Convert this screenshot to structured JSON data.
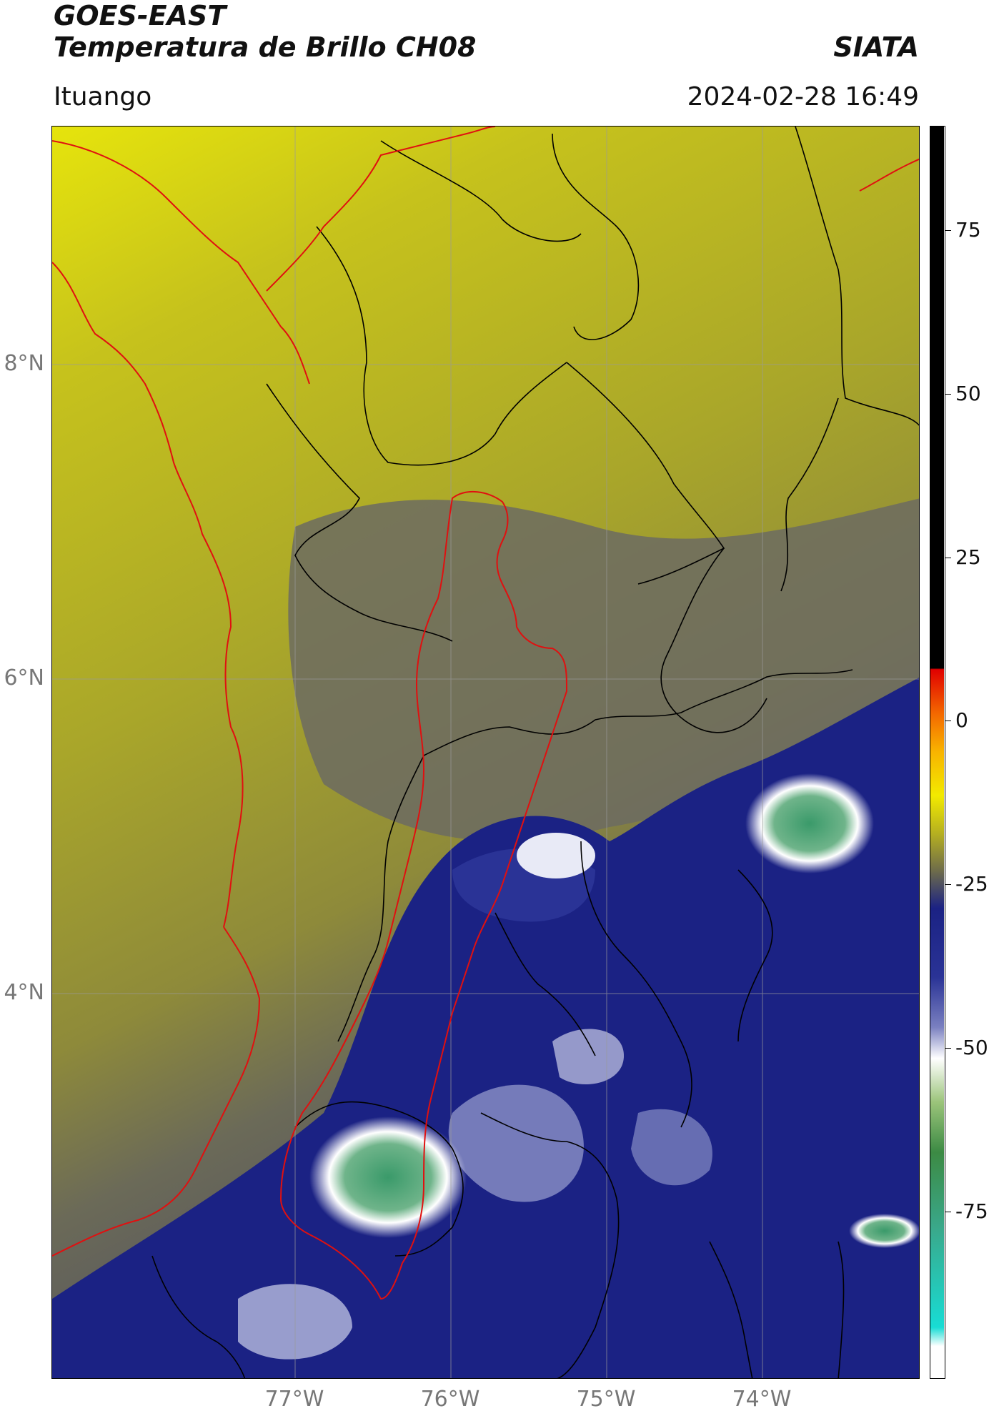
{
  "header": {
    "title_line1": "GOES-EAST",
    "title_line2": "Temperatura de Brillo CH08",
    "brand": "SIATA",
    "location": "Ituango",
    "timestamp": "2024-02-28 16:49"
  },
  "map": {
    "lat_ticks": [
      "8°N",
      "6°N",
      "4°N"
    ],
    "lon_ticks": [
      "77°W",
      "76°W",
      "75°W",
      "74°W"
    ],
    "layers": [
      "brightness-temperature-field",
      "department-boundaries",
      "coastline",
      "ituango-region-outline"
    ],
    "colors": {
      "warm_yellow": "#e4e20c",
      "olive": "#8f8a3a",
      "gray": "#5b5b66",
      "navy": "#1b2284",
      "white": "#ffffff",
      "green": "#3a9a6a",
      "coast": "#e01010",
      "borders": "#000000"
    }
  },
  "colorbar": {
    "ticks": [
      "75",
      "50",
      "25",
      "0",
      "-25",
      "-50",
      "-75"
    ]
  }
}
